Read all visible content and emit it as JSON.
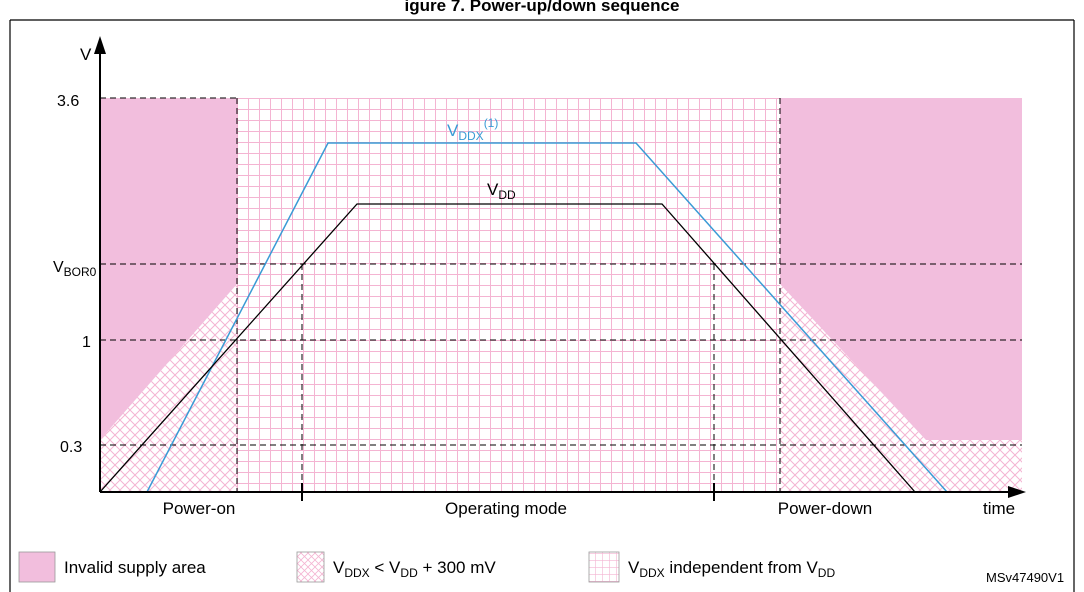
{
  "title": "igure 7. Power-up/down sequence",
  "axes": {
    "y_label": "V",
    "x_label": "time",
    "y_ticks": {
      "v36": "3.6",
      "vbor0_main": "V",
      "vbor0_sub": "BOR0",
      "v1": "1",
      "v03": "0.3"
    }
  },
  "curves": {
    "vddx_main": "V",
    "vddx_sub": "DDX",
    "vddx_note": "(1)",
    "vdd_main": "V",
    "vdd_sub": "DD"
  },
  "phases": {
    "power_on": "Power-on",
    "operating": "Operating mode",
    "power_down": "Power-down"
  },
  "legend": {
    "invalid": "Invalid supply area",
    "cond_v1": "V",
    "cond_s1": "DDX",
    "cond_mid": " < V",
    "cond_s2": "DD",
    "cond_end": " + 300 mV",
    "indep_v1": "V",
    "indep_s1": "DDX",
    "indep_mid": " independent from V",
    "indep_s2": "DD"
  },
  "reference": "MSv47490V1",
  "colors": {
    "invalid_fill": "#F2BEDD",
    "hatch": "#F4B4D2",
    "vddx_line": "#3A9BD5",
    "vdd_line": "#000000"
  }
}
